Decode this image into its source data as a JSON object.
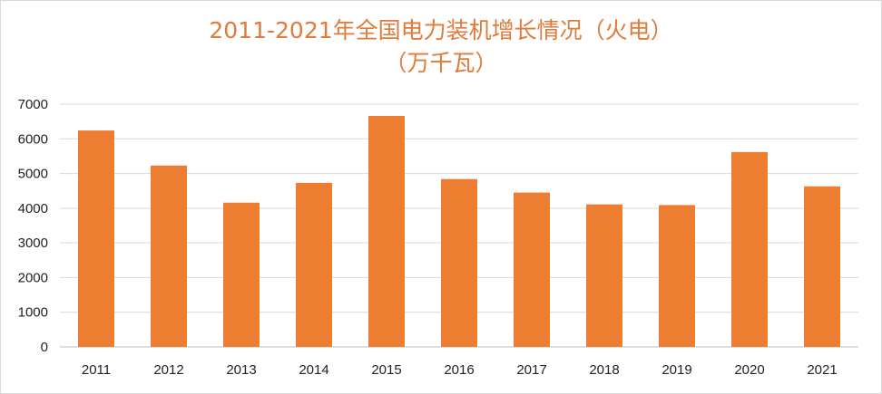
{
  "chart_data": {
    "type": "bar",
    "title": "2011-2021年全国电力装机增长情况（火电）",
    "subtitle": "（万千瓦）",
    "categories": [
      "2011",
      "2012",
      "2013",
      "2014",
      "2015",
      "2016",
      "2017",
      "2018",
      "2019",
      "2020",
      "2021"
    ],
    "values": [
      6240,
      5230,
      4160,
      4730,
      6660,
      4840,
      4450,
      4110,
      4090,
      5620,
      4630
    ],
    "ylim": [
      0,
      7000
    ],
    "yticks": [
      "0",
      "1000",
      "2000",
      "3000",
      "4000",
      "5000",
      "6000",
      "7000"
    ],
    "grid": true,
    "bar_color": "#ED7D31",
    "title_color": "#E07B39"
  }
}
